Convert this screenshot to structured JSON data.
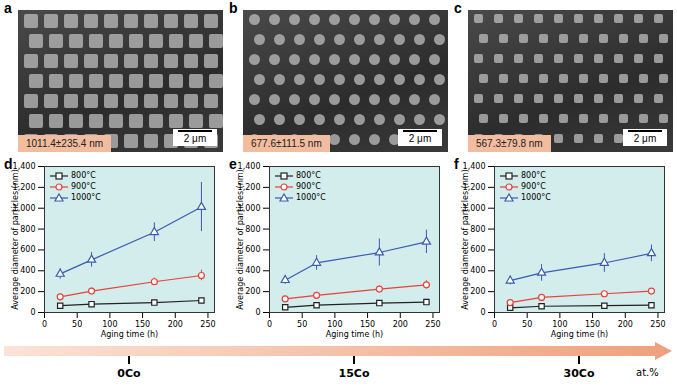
{
  "images": [
    {
      "label": "a",
      "size_label": "1011.4±235.4 nm",
      "scale_bar": "2 μm"
    },
    {
      "label": "b",
      "size_label": "677.6±111.5 nm",
      "scale_bar": "2 μm"
    },
    {
      "label": "c",
      "size_label": "567.3±79.8 nm",
      "scale_bar": "2 μm"
    }
  ],
  "chart_data": [
    {
      "type": "line",
      "panel_label": "d",
      "x_label": "Aging time (h)",
      "y_label": "Average diameter of particles (nm)",
      "x": [
        24,
        72,
        168,
        240
      ],
      "xlim": [
        0,
        260
      ],
      "xticks": [
        0,
        50,
        100,
        150,
        200,
        250
      ],
      "ylim": [
        0,
        1400
      ],
      "yticks": [
        0,
        200,
        400,
        600,
        800,
        1000,
        1200,
        1400
      ],
      "legend": "top-left",
      "series": [
        {
          "name": "800°C",
          "color": "#222222",
          "marker": "square",
          "line_style": "solid",
          "values": [
            65,
            80,
            95,
            115
          ],
          "errors": [
            10,
            10,
            12,
            15
          ]
        },
        {
          "name": "900°C",
          "color": "#e8403a",
          "marker": "circle",
          "line_style": "solid",
          "values": [
            150,
            205,
            295,
            355
          ],
          "errors": [
            20,
            30,
            35,
            50
          ]
        },
        {
          "name": "1000°C",
          "color": "#3a5bb0",
          "marker": "triangle",
          "line_style": "solid",
          "values": [
            370,
            505,
            770,
            1011.4
          ],
          "errors": [
            50,
            70,
            90,
            235.4
          ]
        }
      ]
    },
    {
      "type": "line",
      "panel_label": "e",
      "x_label": "Aging time (h)",
      "y_label": "Average diameter of particles (nm)",
      "x": [
        24,
        72,
        168,
        240
      ],
      "xlim": [
        0,
        260
      ],
      "xticks": [
        0,
        50,
        100,
        150,
        200,
        250
      ],
      "ylim": [
        0,
        1400
      ],
      "yticks": [
        0,
        200,
        400,
        600,
        800,
        1000,
        1200,
        1400
      ],
      "legend": "top-left",
      "series": [
        {
          "name": "800°C",
          "color": "#222222",
          "marker": "square",
          "line_style": "solid",
          "values": [
            50,
            70,
            90,
            100
          ],
          "errors": [
            8,
            10,
            12,
            15
          ]
        },
        {
          "name": "900°C",
          "color": "#e8403a",
          "marker": "circle",
          "line_style": "solid",
          "values": [
            130,
            165,
            225,
            265
          ],
          "errors": [
            15,
            20,
            30,
            40
          ]
        },
        {
          "name": "1000°C",
          "color": "#3a5bb0",
          "marker": "triangle",
          "line_style": "solid",
          "values": [
            310,
            475,
            575,
            677.6
          ],
          "errors": [
            40,
            70,
            130,
            111.5
          ]
        }
      ]
    },
    {
      "type": "line",
      "panel_label": "f",
      "x_label": "Aging time (h)",
      "y_label": "Average diameter of particles (nm)",
      "x": [
        24,
        72,
        168,
        240
      ],
      "xlim": [
        0,
        260
      ],
      "xticks": [
        0,
        50,
        100,
        150,
        200,
        250
      ],
      "ylim": [
        0,
        1400
      ],
      "yticks": [
        0,
        200,
        400,
        600,
        800,
        1000,
        1200,
        1400
      ],
      "legend": "top-left",
      "series": [
        {
          "name": "800°C",
          "color": "#222222",
          "marker": "square",
          "line_style": "solid",
          "values": [
            45,
            60,
            65,
            70
          ],
          "errors": [
            8,
            10,
            10,
            12
          ]
        },
        {
          "name": "900°C",
          "color": "#e8403a",
          "marker": "circle",
          "line_style": "solid",
          "values": [
            95,
            145,
            180,
            205
          ],
          "errors": [
            15,
            20,
            25,
            20
          ]
        },
        {
          "name": "1000°C",
          "color": "#3a5bb0",
          "marker": "triangle",
          "line_style": "solid",
          "values": [
            305,
            380,
            475,
            567.3
          ],
          "errors": [
            40,
            80,
            90,
            79.8
          ]
        }
      ]
    }
  ],
  "composition": {
    "labels": [
      "0Co",
      "15Co",
      "30Co"
    ],
    "unit": "at.%"
  }
}
